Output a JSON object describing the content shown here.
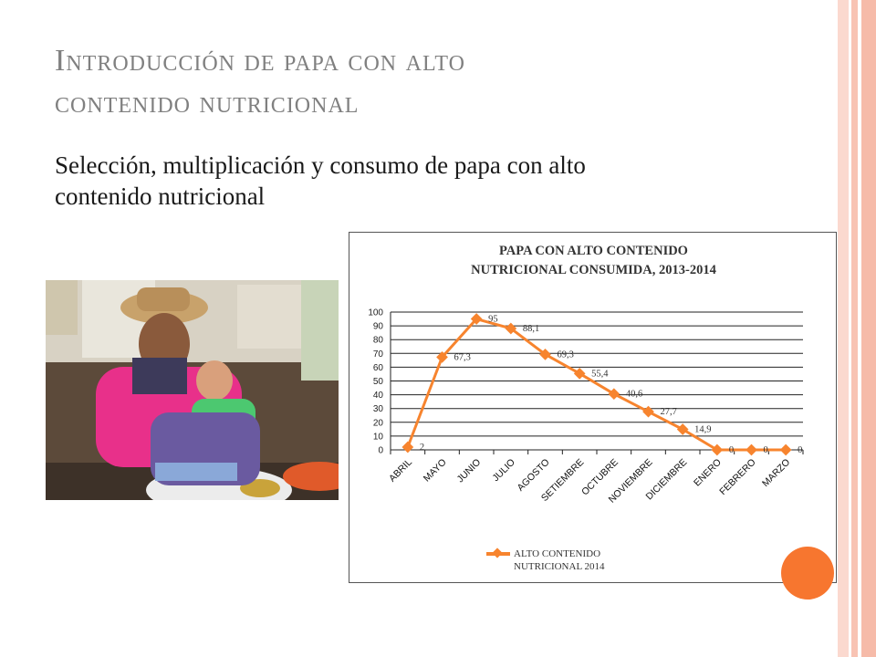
{
  "slide": {
    "title_line1": "Introducción de papa con alto",
    "title_line2": "contenido nutricional",
    "subtitle_line1": "Selección, multiplicación y consumo de papa con alto",
    "subtitle_line2": "contenido nutricional"
  },
  "colors": {
    "accent": "#f7842e",
    "title_gray": "#808080",
    "stripe_pink": "#f8c9bb"
  },
  "chart_data": {
    "type": "line",
    "title_line1": "PAPA CON ALTO CONTENIDO",
    "title_line2": "NUTRICIONAL CONSUMIDA, 2013-2014",
    "categories": [
      "ABRIL",
      "MAYO",
      "JUNIO",
      "JULIO",
      "AGOSTO",
      "SETIEMBRE",
      "OCTUBRE",
      "NOVIEMBRE",
      "DICIEMBRE",
      "ENERO",
      "FEBRERO",
      "MARZO"
    ],
    "series": [
      {
        "name": "ALTO CONTENIDO NUTRICIONAL 2014",
        "values": [
          2,
          67.3,
          95,
          88.1,
          69.3,
          55.4,
          40.6,
          27.7,
          14.9,
          0,
          0,
          0
        ],
        "labels": [
          "2",
          "67,3",
          "95",
          "88,1",
          "69,3",
          "55,4",
          "40,6",
          "27,7",
          "14,9",
          "0",
          "0",
          "0"
        ]
      }
    ],
    "yticks": [
      "0",
      "10",
      "20",
      "30",
      "40",
      "50",
      "60",
      "70",
      "80",
      "90",
      "100"
    ],
    "ylim": [
      0,
      100
    ],
    "grid": true,
    "legend_position": "bottom"
  }
}
